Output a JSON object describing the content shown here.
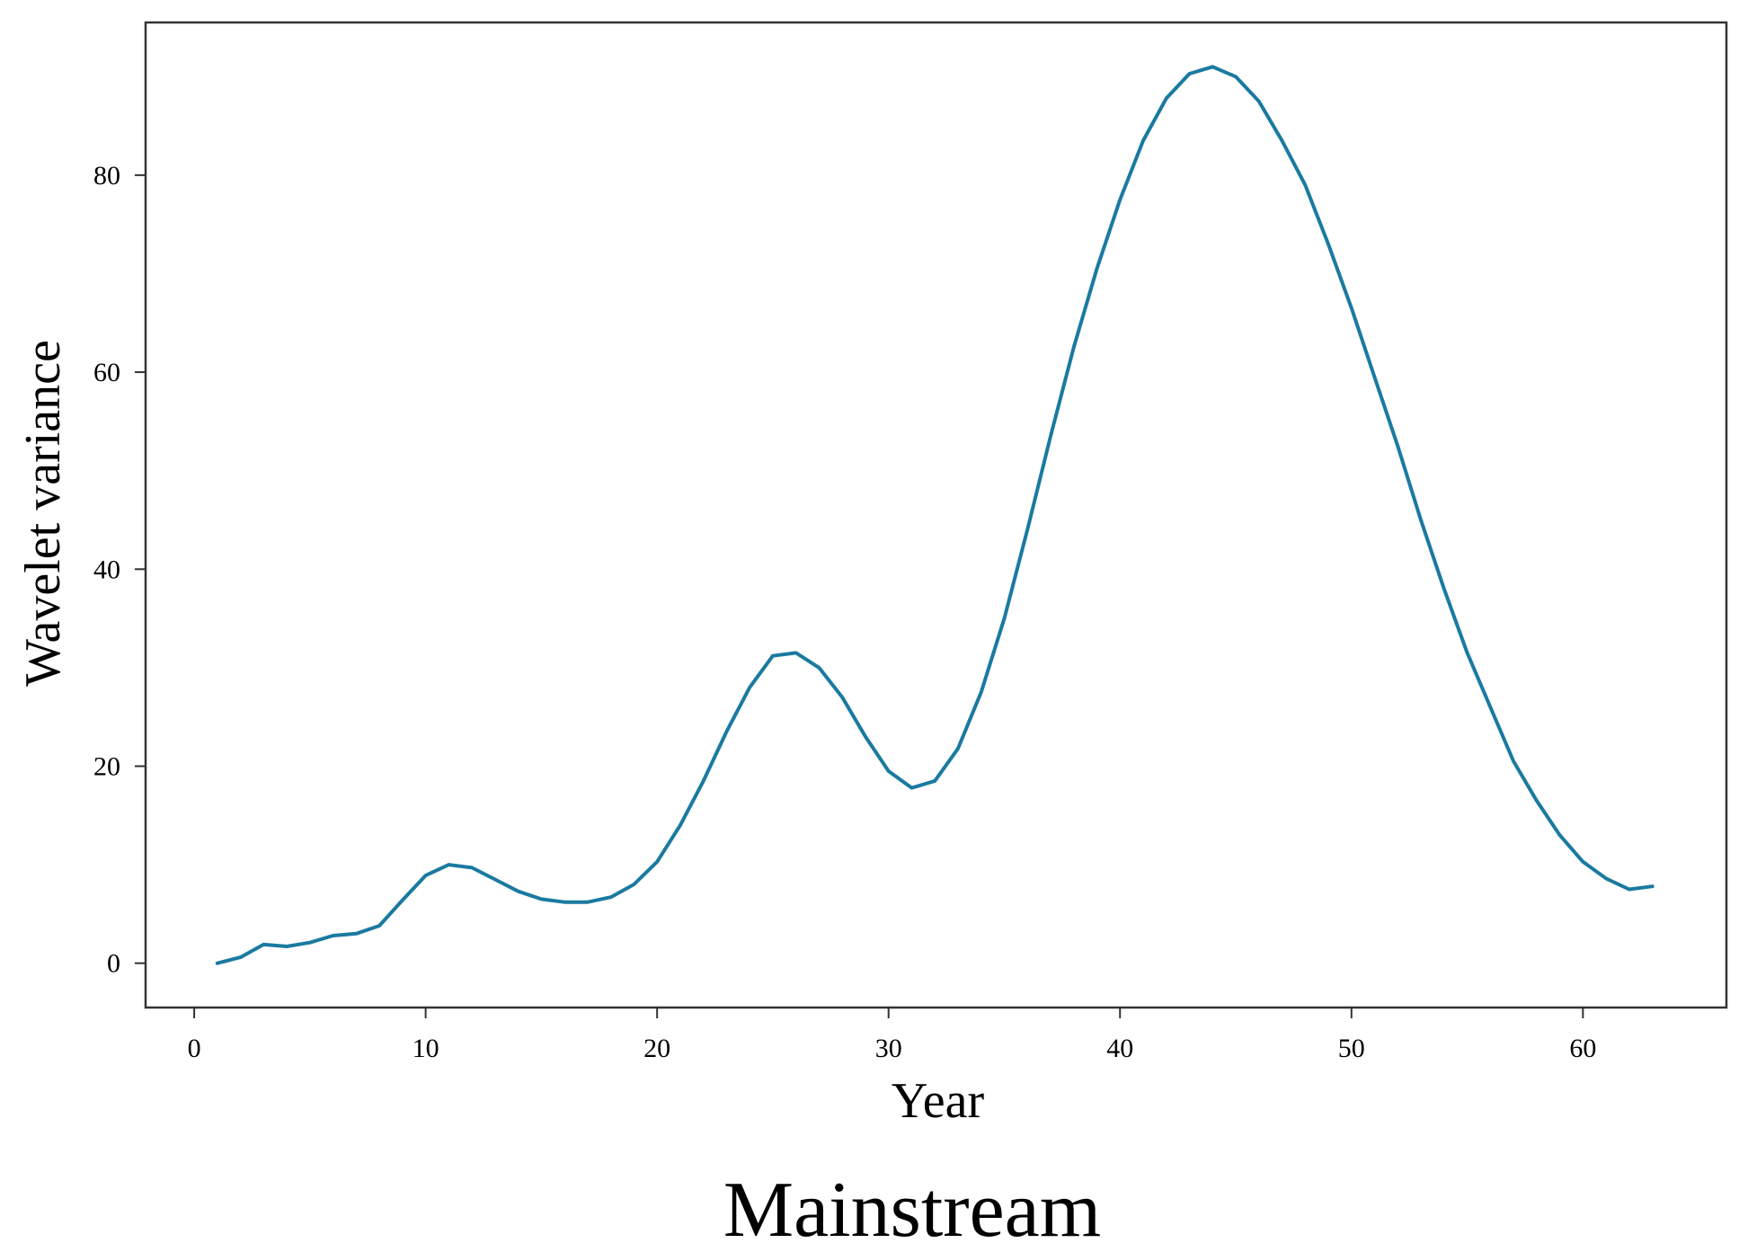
{
  "chart_data": {
    "type": "line",
    "title": "",
    "caption": "Mainstream",
    "xlabel": "Year",
    "ylabel": "Wavelet variance",
    "xlim": [
      -2.1,
      66.2
    ],
    "ylim": [
      -4.5,
      95.5
    ],
    "xticks": [
      0,
      10,
      20,
      30,
      40,
      50,
      60
    ],
    "xtick_labels": [
      "0",
      "10",
      "20",
      "30",
      "40",
      "50",
      "60"
    ],
    "yticks": [
      0,
      20,
      40,
      60,
      80
    ],
    "ytick_labels": [
      "0",
      "20",
      "40",
      "60",
      "80"
    ],
    "grid": false,
    "legend": "none",
    "series": [
      {
        "color": "#1a7aa0",
        "x": [
          1,
          2,
          3,
          4,
          5,
          6,
          7,
          8,
          9,
          10,
          11,
          12,
          13,
          14,
          15,
          16,
          17,
          18,
          19,
          20,
          21,
          22,
          23,
          24,
          25,
          26,
          27,
          28,
          29,
          30,
          31,
          32,
          33,
          34,
          35,
          36,
          37,
          38,
          39,
          40,
          41,
          42,
          43,
          44,
          45,
          46,
          47,
          48,
          49,
          50,
          51,
          52,
          53,
          54,
          55,
          56,
          57,
          58,
          59,
          60,
          61,
          62,
          63
        ],
        "y": [
          0,
          0.6,
          1.9,
          1.7,
          2.1,
          2.8,
          3.0,
          3.8,
          6.4,
          8.9,
          10.0,
          9.7,
          8.5,
          7.3,
          6.5,
          6.2,
          6.2,
          6.7,
          8.0,
          10.3,
          14.0,
          18.5,
          23.5,
          28.0,
          31.2,
          31.5,
          30.0,
          27.0,
          23.0,
          19.5,
          17.8,
          18.5,
          21.8,
          27.5,
          35.0,
          44.0,
          53.5,
          62.5,
          70.5,
          77.5,
          83.5,
          87.8,
          90.3,
          91.0,
          90.0,
          87.5,
          83.5,
          79.0,
          73.0,
          66.5,
          59.5,
          52.5,
          45.0,
          38.0,
          31.5,
          26.0,
          20.5,
          16.5,
          13.0,
          10.3,
          8.6,
          7.5,
          7.8
        ]
      }
    ]
  }
}
